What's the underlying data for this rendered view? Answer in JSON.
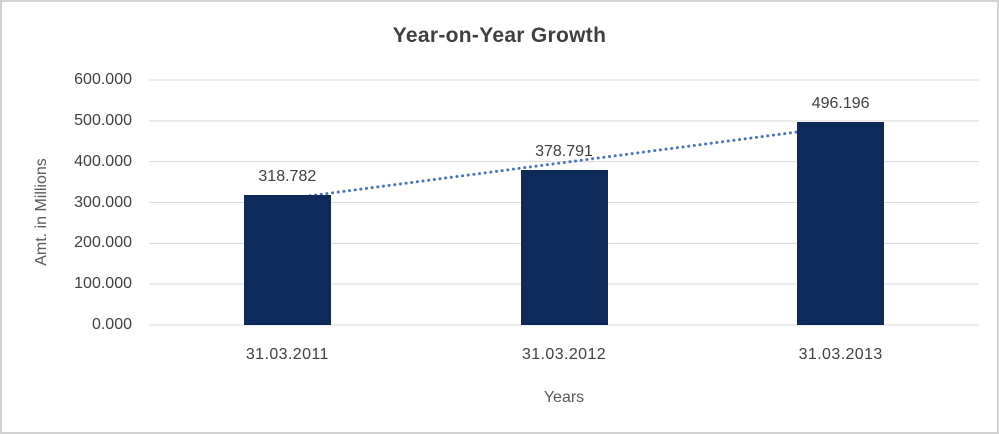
{
  "window": {
    "background_color": "#ffffff",
    "border_color": "#d2d2d2"
  },
  "chart_data": {
    "type": "bar",
    "title": "Year-on-Year Growth",
    "xlabel": "Years",
    "ylabel": "Amt. in Millions",
    "categories": [
      "31.03.2011",
      "31.03.2012",
      "31.03.2013"
    ],
    "values": [
      318.782,
      378.791,
      496.196
    ],
    "value_labels": [
      "318.782",
      "378.791",
      "496.196"
    ],
    "yticks": [
      600,
      500,
      400,
      300,
      200,
      100,
      0
    ],
    "ytick_labels": [
      "600.000",
      "500.000",
      "400.000",
      "300.000",
      "200.000",
      "100.000",
      "0.000"
    ],
    "ylim": [
      0,
      600
    ],
    "grid": true,
    "legend_position": "none",
    "bar_color": "#0e2a5a",
    "gridline_color": "#d9d9d9",
    "trendline": {
      "type": "linear",
      "style": "dotted",
      "color": "#4472c4",
      "start_value": 309.2,
      "end_value": 486.6
    }
  }
}
